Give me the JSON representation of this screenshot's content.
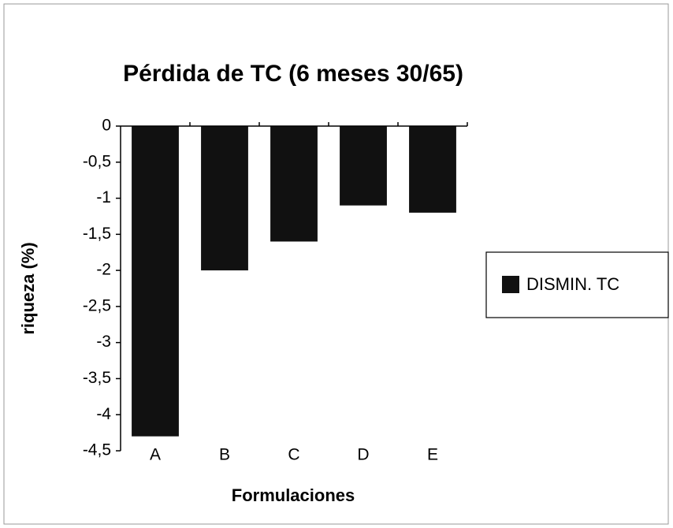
{
  "chart_data": {
    "type": "bar",
    "title": "Pérdida de TC (6 meses 30/65)",
    "x_label": "Formulaciones",
    "y_label": "riqueza (%)",
    "categories": [
      "A",
      "B",
      "C",
      "D",
      "E"
    ],
    "series": [
      {
        "name": "DISMIN. TC",
        "color": "#111111",
        "values": [
          -4.3,
          -2,
          -1.6,
          -1.1,
          -1.2
        ]
      }
    ],
    "ylim": [
      -4.5,
      0
    ],
    "yticks": [
      0,
      {
        "value": -0.5,
        "label": "-0,5"
      },
      -1,
      {
        "value": -1.5,
        "label": "-1,5"
      },
      -2,
      {
        "value": -2.5,
        "label": "-2,5"
      },
      -3,
      {
        "value": -3.5,
        "label": "-3,5"
      },
      -4,
      {
        "value": -4.5,
        "label": "-4,5"
      }
    ],
    "legend": "right"
  }
}
